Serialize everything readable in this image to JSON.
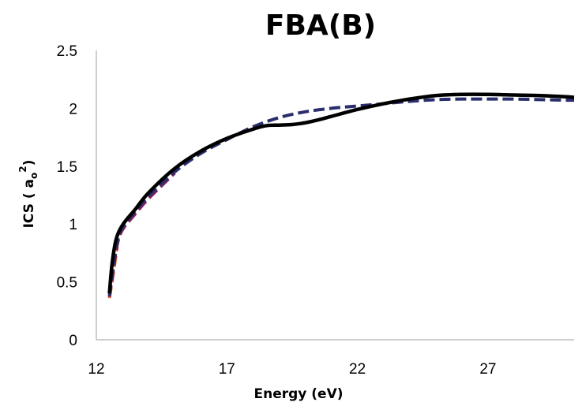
{
  "chart_data": {
    "type": "line",
    "title": "FBA(B)",
    "xlabel": "Energy (eV)",
    "ylabel_main": "ICS ( a",
    "ylabel_sub": "o",
    "ylabel_sup": "2",
    "ylabel_close": ")",
    "xlim": [
      12,
      30.3
    ],
    "ylim": [
      0,
      2.5
    ],
    "x_ticks": [
      12,
      17,
      22,
      27
    ],
    "x_tick_labels": [
      "12",
      "17",
      "22",
      "27"
    ],
    "y_ticks": [
      0,
      0.5,
      1,
      1.5,
      2,
      2.5
    ],
    "y_tick_labels": [
      "0",
      "0.5",
      "1",
      "1.5",
      "2",
      "2.5"
    ],
    "grid": false,
    "legend": "none",
    "series": [
      {
        "color": "#000000",
        "dash": "solid",
        "x": [
          12.5,
          12.6,
          12.75,
          13.0,
          13.5,
          14.0,
          15.0,
          16.0,
          17.0,
          18.0,
          18.5,
          19.0,
          19.5,
          20.0,
          20.5,
          21.0,
          22.0,
          23.0,
          24.0,
          25.0,
          26.0,
          27.0,
          28.0,
          29.0,
          30.0,
          30.3
        ],
        "y": [
          0.4,
          0.65,
          0.86,
          0.99,
          1.13,
          1.27,
          1.48,
          1.63,
          1.74,
          1.82,
          1.85,
          1.855,
          1.86,
          1.875,
          1.9,
          1.93,
          1.99,
          2.04,
          2.08,
          2.11,
          2.12,
          2.12,
          2.115,
          2.11,
          2.1,
          2.095
        ]
      },
      {
        "color": "#2a2e6e",
        "dash": "dashed",
        "x": [
          12.5,
          12.65,
          12.8,
          13.0,
          13.5,
          14.0,
          15.0,
          16.0,
          17.0,
          18.0,
          19.0,
          20.0,
          21.0,
          22.0,
          23.0,
          24.0,
          25.0,
          26.0,
          27.0,
          28.0,
          29.0,
          30.0,
          30.3
        ],
        "y": [
          0.38,
          0.62,
          0.84,
          0.97,
          1.11,
          1.24,
          1.45,
          1.61,
          1.73,
          1.84,
          1.92,
          1.97,
          2.0,
          2.02,
          2.04,
          2.06,
          2.075,
          2.08,
          2.08,
          2.08,
          2.075,
          2.07,
          2.07
        ]
      },
      {
        "color": "#8b1f5a",
        "dash": "dashed",
        "x": [
          12.5,
          12.65,
          12.8,
          13.0,
          13.5,
          14.0,
          15.0
        ],
        "y": [
          0.37,
          0.6,
          0.82,
          0.95,
          1.09,
          1.22,
          1.44
        ]
      },
      {
        "color": "#e07030",
        "dash": "dashed",
        "x": [
          12.5,
          12.6,
          12.7,
          12.8
        ],
        "y": [
          0.36,
          0.5,
          0.65,
          0.8
        ]
      }
    ]
  }
}
